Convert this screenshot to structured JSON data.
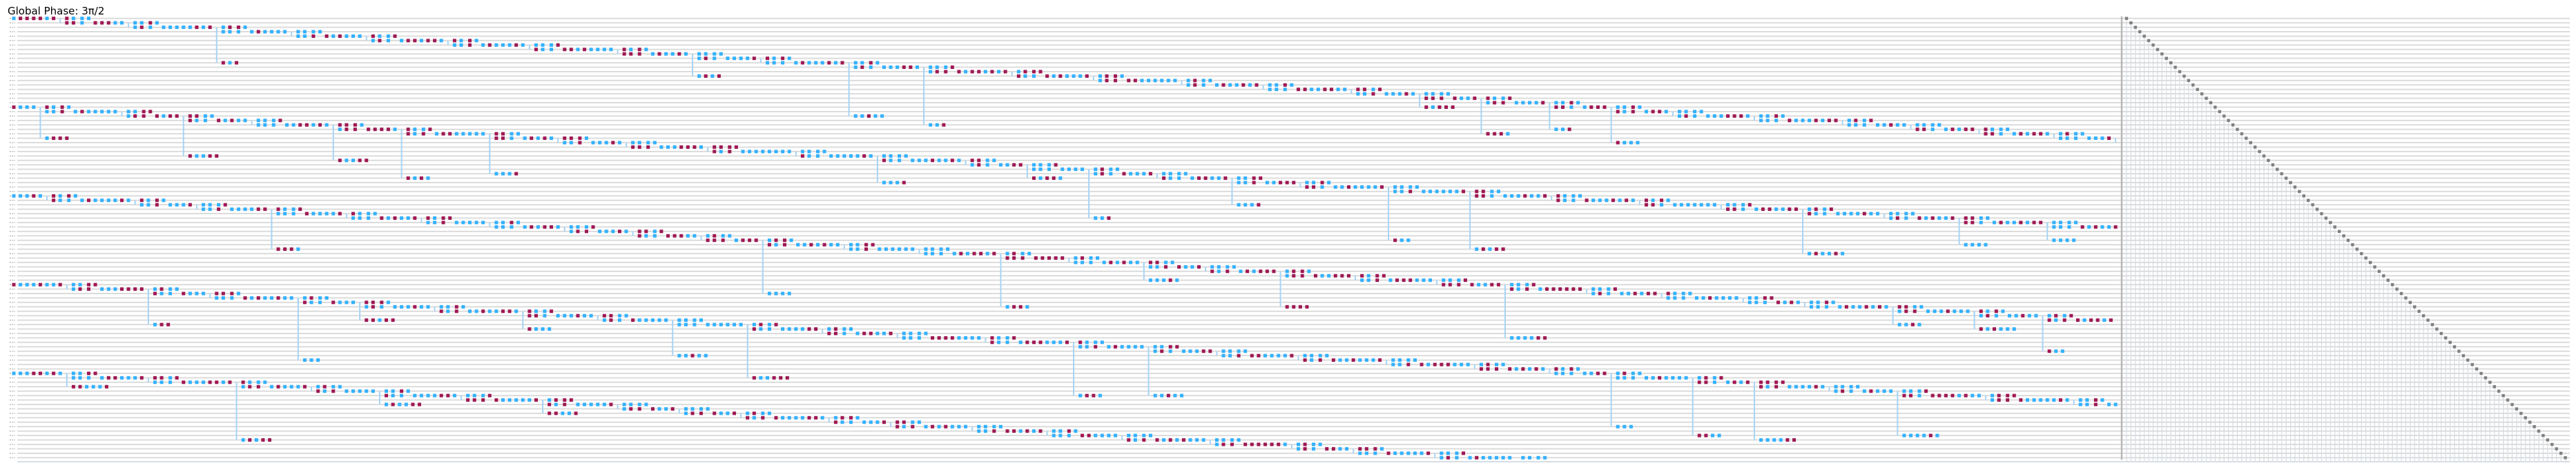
{
  "header": {
    "global_phase": "Global Phase: 3π/2"
  },
  "circuit": {
    "num_qubits": 100,
    "num_bands": 5,
    "colors": {
      "wire": "#dcdcdc",
      "gate_blue": "#33b1ff",
      "gate_magenta": "#9f1853",
      "connector": "#a6d4f5",
      "barrier": "#b8b8b8",
      "measure": "#808080",
      "classical": "#d6dde4"
    },
    "gate_types": [
      "sx",
      "rz"
    ],
    "has_barrier": true,
    "measure_all": true
  }
}
